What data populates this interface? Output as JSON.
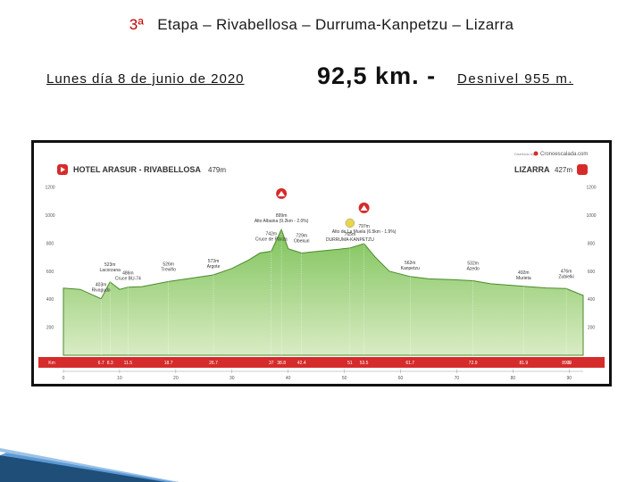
{
  "header": {
    "title_stage": "3ª",
    "title_part1": "Etapa",
    "title_sep1": " – ",
    "title_part2": "Rivabellosa",
    "title_sep2": " – ",
    "title_part3": "Durruma-Kanpetzu",
    "title_sep3": " – ",
    "title_part4": "Lizarra",
    "date": "Lunes día 8 de junio de 2020",
    "distance": "92,5 km. -",
    "desnivel": "Desnivel 955 m."
  },
  "profile": {
    "start_label": "HOTEL ARASUR - RIVABELLOSA",
    "start_alt": "479m",
    "end_label": "LIZARRA",
    "end_alt": "427m",
    "brand": "Cronoescalada.com",
    "brand_prefix": "Diseñado by",
    "colors": {
      "fill_top": "#7fc35a",
      "fill_bottom": "#d9ecc4",
      "km_bar": "#d62b2b",
      "line": "#4a8a2a"
    },
    "y_ticks": [
      "1200",
      "1000",
      "800",
      "600",
      "400",
      "200"
    ],
    "km_label": "Km",
    "km_marks": [
      "6.7",
      "8.3",
      "11.5",
      "18.7",
      "26.7",
      "37",
      "38.8",
      "42.4",
      "51",
      "53.5",
      "61.7",
      "72.9",
      "81.9",
      "89.5",
      "90"
    ],
    "bottom_ticks": [
      "0",
      "10",
      "20",
      "30",
      "40",
      "50",
      "60",
      "70",
      "80",
      "90"
    ],
    "points": [
      {
        "name": "Rivaguda",
        "alt": "403m",
        "km": 6.7
      },
      {
        "name": "Lacorzana",
        "alt": "523m",
        "km": 8.3
      },
      {
        "name": "Cruce BU-74",
        "alt": "486m",
        "km": 11.5
      },
      {
        "name": "Treviño",
        "alt": "526m",
        "km": 18.7
      },
      {
        "name": "Argote",
        "alt": "573m",
        "km": 26.7
      },
      {
        "name": "Cruce de Páriza",
        "alt": "742m",
        "km": 37
      },
      {
        "name": "Alto Albaina (9.2km - 2.0%)",
        "alt": "899m",
        "km": 38.8
      },
      {
        "name": "Obekuri",
        "alt": "729m",
        "km": 42.4
      },
      {
        "name": "DURRUMA-KANPETZU",
        "alt": "765m",
        "km": 51
      },
      {
        "name": "Alto de La Muela (6.5km - 1.9%)",
        "alt": "797m",
        "km": 53.5
      },
      {
        "name": "Kanpetzu",
        "alt": "562m",
        "km": 61.7
      },
      {
        "name": "Azedo",
        "alt": "532m",
        "km": 72.9
      },
      {
        "name": "Murieta",
        "alt": "492m",
        "km": 81.9
      },
      {
        "name": "Zubielki",
        "alt": "476m",
        "km": 89.5
      }
    ],
    "profile_data": {
      "km": [
        0,
        3,
        6.7,
        8.3,
        10,
        11.5,
        14,
        18.7,
        22,
        26.7,
        30,
        33,
        35,
        37,
        38.8,
        40,
        42.4,
        45,
        48,
        51,
        53.5,
        55.5,
        58,
        61.7,
        65,
        69,
        72.9,
        76,
        81.9,
        86,
        89.5,
        92.5
      ],
      "alt": [
        479,
        470,
        403,
        523,
        470,
        486,
        490,
        526,
        545,
        573,
        620,
        680,
        730,
        742,
        899,
        760,
        729,
        740,
        752,
        765,
        797,
        700,
        600,
        562,
        545,
        540,
        532,
        510,
        492,
        480,
        476,
        427
      ]
    }
  }
}
